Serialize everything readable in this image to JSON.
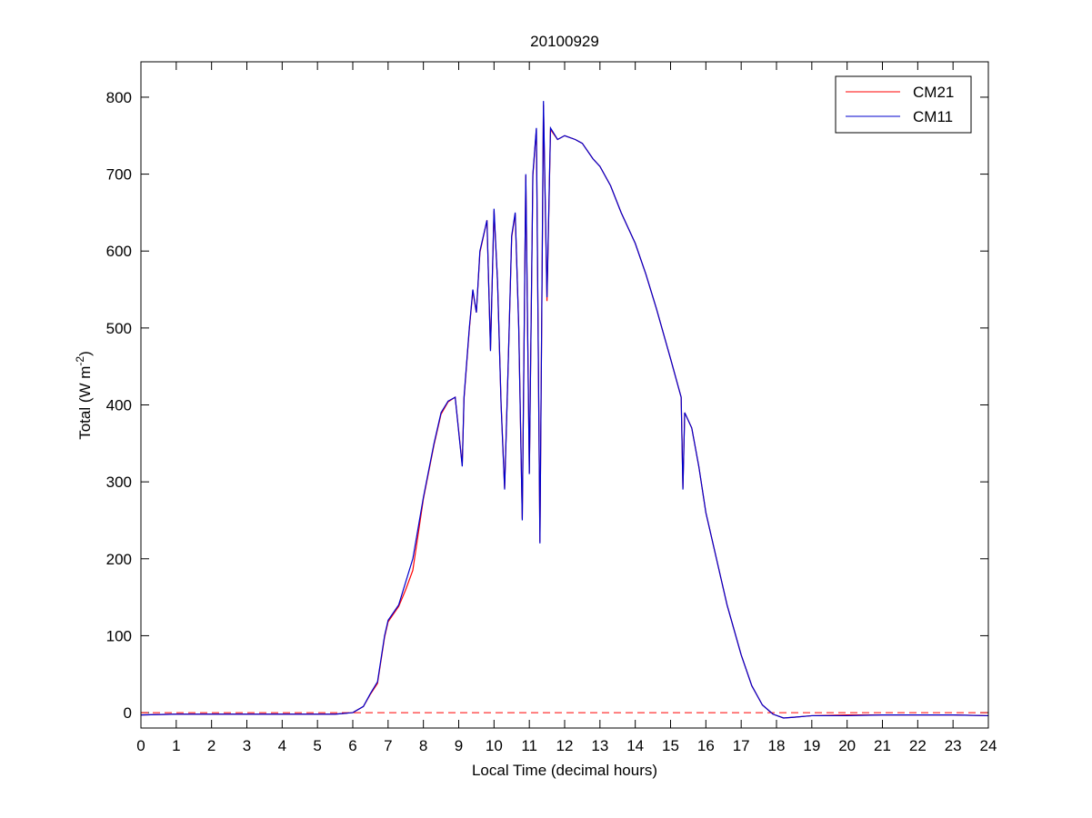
{
  "chart_data": {
    "type": "line",
    "title": "20100929",
    "xlabel": "Local Time (decimal hours)",
    "ylabel": {
      "text": "Total (W m",
      "superscript": "-2",
      "suffix": ")"
    },
    "x": [
      0,
      1,
      2,
      3,
      4,
      5,
      5.5,
      6,
      6.3,
      6.5,
      6.7,
      6.9,
      7.0,
      7.3,
      7.5,
      7.7,
      8.0,
      8.3,
      8.5,
      8.7,
      8.9,
      9.1,
      9.15,
      9.3,
      9.4,
      9.5,
      9.6,
      9.8,
      9.9,
      10.0,
      10.1,
      10.2,
      10.3,
      10.4,
      10.5,
      10.6,
      10.7,
      10.8,
      10.9,
      11.0,
      11.1,
      11.2,
      11.3,
      11.4,
      11.5,
      11.6,
      11.8,
      12.0,
      12.3,
      12.5,
      12.8,
      13.0,
      13.3,
      13.6,
      14.0,
      14.3,
      14.6,
      15.0,
      15.3,
      15.35,
      15.4,
      15.6,
      15.8,
      16.0,
      16.3,
      16.6,
      17.0,
      17.3,
      17.6,
      17.9,
      18.2,
      18.5,
      19,
      20,
      21,
      22,
      23,
      24
    ],
    "series": [
      {
        "name": "CM21",
        "color": "#ff0000",
        "values": [
          -3,
          -2,
          -2,
          -2,
          -2,
          -2,
          -2,
          0,
          8,
          24,
          38,
          98,
          118,
          138,
          160,
          185,
          278,
          348,
          388,
          404,
          410,
          322,
          408,
          498,
          548,
          520,
          598,
          640,
          472,
          652,
          560,
          402,
          292,
          450,
          618,
          648,
          502,
          252,
          698,
          312,
          698,
          758,
          222,
          790,
          535,
          758,
          745,
          750,
          745,
          740,
          720,
          710,
          685,
          650,
          610,
          570,
          525,
          460,
          410,
          292,
          390,
          370,
          320,
          260,
          200,
          140,
          75,
          35,
          10,
          -2,
          -7,
          -6,
          -4,
          -3,
          -3,
          -3,
          -3,
          -4
        ]
      },
      {
        "name": "CM11",
        "color": "#0000cc",
        "values": [
          -3,
          -2,
          -2,
          -2,
          -2,
          -2,
          -2,
          0,
          8,
          25,
          40,
          100,
          120,
          140,
          170,
          200,
          280,
          350,
          390,
          405,
          410,
          320,
          410,
          500,
          550,
          520,
          600,
          640,
          470,
          655,
          560,
          400,
          290,
          450,
          620,
          650,
          500,
          250,
          700,
          310,
          700,
          760,
          220,
          795,
          540,
          760,
          745,
          750,
          745,
          740,
          720,
          710,
          685,
          650,
          610,
          570,
          525,
          460,
          410,
          290,
          390,
          370,
          320,
          260,
          200,
          140,
          75,
          35,
          10,
          -2,
          -7,
          -6,
          -4,
          -4,
          -3,
          -3,
          -3,
          -4
        ]
      }
    ],
    "hline": 0,
    "xlim": [
      0,
      24
    ],
    "xticks": [
      0,
      1,
      2,
      3,
      4,
      5,
      6,
      7,
      8,
      9,
      10,
      11,
      12,
      13,
      14,
      15,
      16,
      17,
      18,
      19,
      20,
      21,
      22,
      23,
      24
    ],
    "ylim": [
      -20,
      846
    ],
    "yticks": [
      0,
      100,
      200,
      300,
      400,
      500,
      600,
      700,
      800
    ],
    "legend": "upper-right"
  }
}
